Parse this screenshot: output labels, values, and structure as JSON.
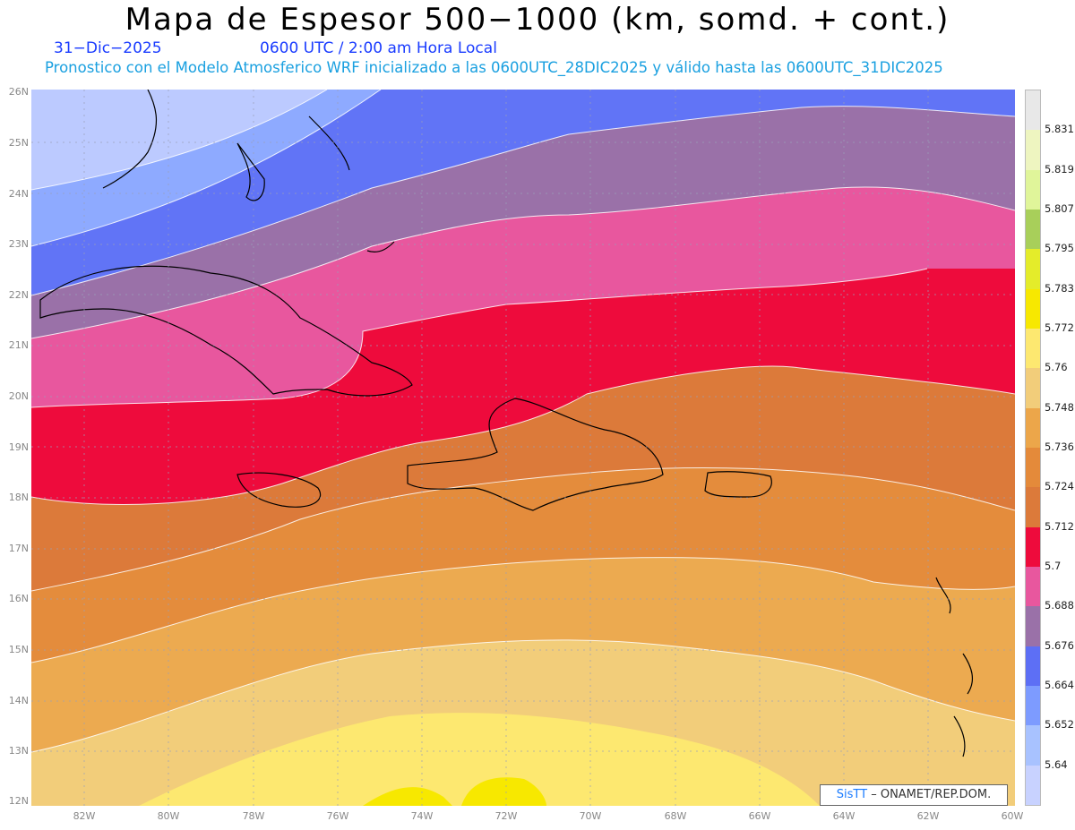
{
  "title": "Mapa de Espesor 500−1000 (km, somd. + cont.)",
  "date": "31−Dic−2025",
  "time": "0600 UTC / 2:00 am Hora Local",
  "subtitle": "Pronostico con el Modelo Atmosferico WRF inicializado a las 0600UTC_28DIC2025 y válido hasta las  0600UTC_31DIC2025",
  "credit": {
    "brand": "SisTT",
    "text": "– ONAMET/REP.DOM."
  },
  "lat_labels": [
    "26N",
    "25N",
    "24N",
    "23N",
    "22N",
    "21N",
    "20N",
    "19N",
    "18N",
    "17N",
    "16N",
    "15N",
    "14N",
    "13N",
    "12N"
  ],
  "lon_labels": [
    "82W",
    "80W",
    "78W",
    "76W",
    "74W",
    "72W",
    "70W",
    "68W",
    "66W",
    "64W",
    "62W",
    "60W"
  ],
  "colorbar": {
    "levels": [
      "5.831",
      "5.819",
      "5.807",
      "5.795",
      "5.783",
      "5.772",
      "5.76",
      "5.748",
      "5.736",
      "5.724",
      "5.712",
      "5.7",
      "5.688",
      "5.676",
      "5.664",
      "5.652",
      "5.64"
    ],
    "colors": [
      "#e8e8e8",
      "#eef5c0",
      "#e0f59a",
      "#a8cf5a",
      "#e4ec2a",
      "#f7e800",
      "#fde870",
      "#f2cd7a",
      "#eca64a",
      "#e48a3a",
      "#dc7a3a",
      "#ee0b3c",
      "#e8579e",
      "#9a71a8",
      "#5d6ff5",
      "#7d9bff",
      "#a8c2ff",
      "#c8d2ff"
    ]
  },
  "bands": [
    {
      "name": "5.64",
      "color": "#bccaff"
    },
    {
      "name": "5.652",
      "color": "#8eaaff"
    },
    {
      "name": "5.664",
      "color": "#6174f6"
    },
    {
      "name": "5.676",
      "color": "#9a71a8"
    },
    {
      "name": "5.688",
      "color": "#e8579e"
    },
    {
      "name": "5.7",
      "color": "#ee0b3c"
    },
    {
      "name": "5.712",
      "color": "#dc7a3a"
    },
    {
      "name": "5.724",
      "color": "#e48c3c"
    },
    {
      "name": "5.736",
      "color": "#ecaa50"
    },
    {
      "name": "5.748",
      "color": "#f2cd7a"
    },
    {
      "name": "5.76",
      "color": "#fde870"
    },
    {
      "name": "5.772",
      "color": "#f7e800"
    }
  ]
}
